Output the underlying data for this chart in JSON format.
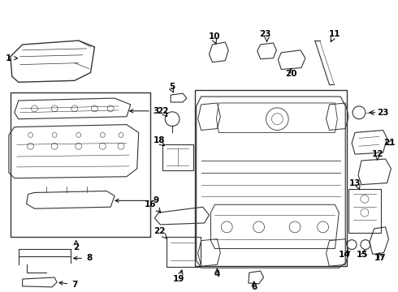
{
  "bg_color": "#ffffff",
  "gray": "#333333",
  "lw": 0.8
}
